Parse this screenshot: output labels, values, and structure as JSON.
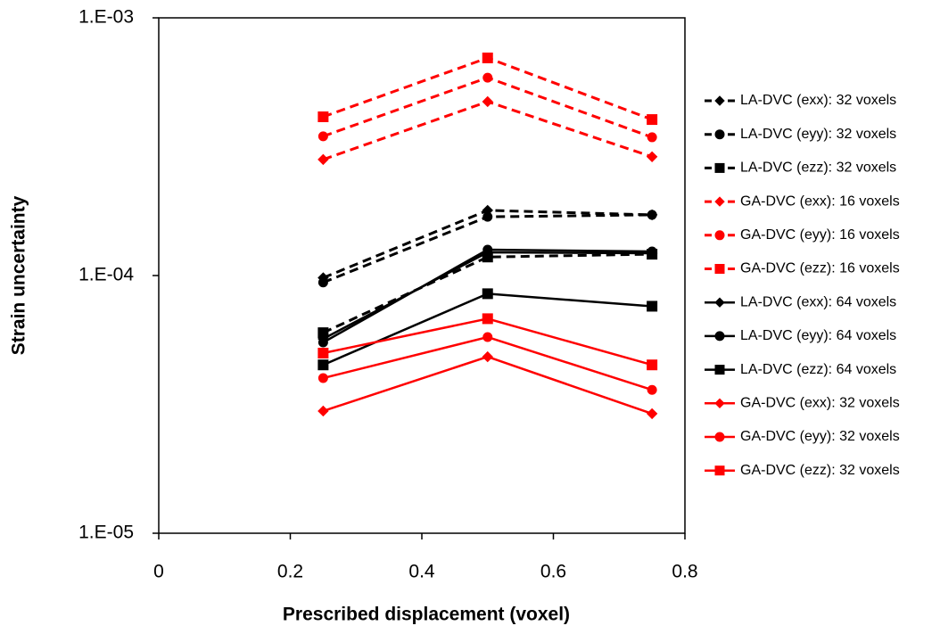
{
  "chart_data": {
    "type": "line",
    "x_label": "Prescribed displacement (voxel)",
    "y_label": "Strain uncertainty",
    "log_y": true,
    "legend": "right",
    "xlim": [
      0,
      0.8
    ],
    "xticks": [
      0,
      0.2,
      0.4,
      0.6,
      0.8
    ],
    "ylim": [
      1e-05,
      0.001
    ],
    "yticks": [
      {
        "value": 1e-05,
        "label": "1.E-05"
      },
      {
        "value": 0.0001,
        "label": "1.E-04"
      },
      {
        "value": 0.001,
        "label": "1.E-03"
      }
    ],
    "x": [
      0.25,
      0.5,
      0.75
    ],
    "series": [
      {
        "name": "LA-DVC (exx): 32 voxels",
        "color": "#000000",
        "dash": true,
        "marker": "diamond",
        "values": [
          9.8e-05,
          0.000179,
          0.000172
        ]
      },
      {
        "name": "LA-DVC (eyy): 32 voxels",
        "color": "#000000",
        "dash": true,
        "marker": "circle",
        "values": [
          9.4e-05,
          0.000169,
          0.000172
        ]
      },
      {
        "name": "LA-DVC (ezz): 32 voxels",
        "color": "#000000",
        "dash": true,
        "marker": "square",
        "values": [
          6e-05,
          0.000118,
          0.000121
        ]
      },
      {
        "name": "GA-DVC (exx): 16 voxels",
        "color": "#ff0000",
        "dash": true,
        "marker": "diamond",
        "values": [
          0.000282,
          0.000473,
          0.000289
        ]
      },
      {
        "name": "GA-DVC (eyy): 16 voxels",
        "color": "#ff0000",
        "dash": true,
        "marker": "circle",
        "values": [
          0.000347,
          0.000586,
          0.000344
        ]
      },
      {
        "name": "GA-DVC (ezz): 16 voxels",
        "color": "#ff0000",
        "dash": true,
        "marker": "square",
        "values": [
          0.000413,
          0.000699,
          0.000403
        ]
      },
      {
        "name": "LA-DVC (exx): 64 voxels",
        "color": "#000000",
        "dash": false,
        "marker": "diamond",
        "values": [
          5.68e-05,
          0.000123,
          0.000122
        ]
      },
      {
        "name": "LA-DVC (eyy): 64 voxels",
        "color": "#000000",
        "dash": false,
        "marker": "circle",
        "values": [
          5.5e-05,
          0.000126,
          0.000124
        ]
      },
      {
        "name": "LA-DVC (ezz): 64 voxels",
        "color": "#000000",
        "dash": false,
        "marker": "square",
        "values": [
          4.5e-05,
          8.5e-05,
          7.6e-05
        ]
      },
      {
        "name": "GA-DVC (exx): 32 voxels",
        "color": "#ff0000",
        "dash": false,
        "marker": "diamond",
        "values": [
          2.98e-05,
          4.84e-05,
          2.91e-05
        ]
      },
      {
        "name": "GA-DVC (eyy): 32 voxels",
        "color": "#ff0000",
        "dash": false,
        "marker": "circle",
        "values": [
          4e-05,
          5.77e-05,
          3.6e-05
        ]
      },
      {
        "name": "GA-DVC (ezz): 32 voxels",
        "color": "#ff0000",
        "dash": false,
        "marker": "square",
        "values": [
          5e-05,
          6.8e-05,
          4.5e-05
        ]
      }
    ]
  }
}
